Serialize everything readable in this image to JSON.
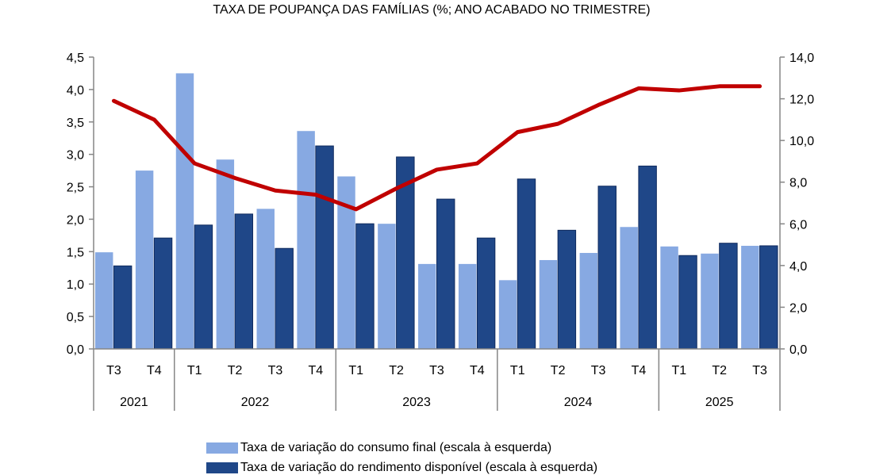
{
  "chart_data": {
    "type": "bar",
    "title": "TAXA DE POUPANÇA DAS FAMÍLIAS (%; ANO ACABADO NO TRIMESTRE)",
    "categories": [
      "T3",
      "T4",
      "T1",
      "T2",
      "T3",
      "T4",
      "T1",
      "T2",
      "T3",
      "T4",
      "T1",
      "T2",
      "T3",
      "T4",
      "T1",
      "T2",
      "T3"
    ],
    "years": [
      {
        "label": "2021",
        "count": 2
      },
      {
        "label": "2022",
        "count": 4
      },
      {
        "label": "2023",
        "count": 4
      },
      {
        "label": "2024",
        "count": 4
      },
      {
        "label": "2025",
        "count": 3
      }
    ],
    "y_left": {
      "range": [
        0,
        4.5
      ],
      "ticks": [
        "0,0",
        "0,5",
        "1,0",
        "1,5",
        "2,0",
        "2,5",
        "3,0",
        "3,5",
        "4,0",
        "4,5"
      ]
    },
    "y_right": {
      "range": [
        0,
        14
      ],
      "ticks": [
        "0,0",
        "2,0",
        "4,0",
        "6,0",
        "8,0",
        "10,0",
        "12,0",
        "14,0"
      ]
    },
    "series": [
      {
        "name": "Taxa de variação do consumo final (escala à esquerda)",
        "type": "bar",
        "axis": "left",
        "color": "#87A9E2",
        "values": [
          1.49,
          2.75,
          4.25,
          2.92,
          2.16,
          3.36,
          2.66,
          1.93,
          1.31,
          1.31,
          1.06,
          1.37,
          1.48,
          1.88,
          1.58,
          1.47,
          1.59
        ]
      },
      {
        "name": "Taxa de variação do rendimento disponível (escala à esquerda)",
        "type": "bar",
        "axis": "left",
        "color": "#1F4788",
        "values": [
          1.28,
          1.71,
          1.91,
          2.08,
          1.55,
          3.13,
          1.93,
          2.96,
          2.31,
          1.71,
          2.62,
          1.83,
          2.51,
          2.82,
          1.44,
          1.63,
          1.59
        ]
      },
      {
        "type": "line",
        "axis": "right",
        "color": "#C00000",
        "values": [
          11.9,
          11.0,
          8.9,
          8.2,
          7.6,
          7.4,
          6.7,
          7.7,
          8.6,
          8.9,
          10.4,
          10.8,
          11.7,
          12.5,
          12.4,
          12.6,
          12.6
        ]
      }
    ],
    "grid": false,
    "legend_placement": "bottom"
  }
}
